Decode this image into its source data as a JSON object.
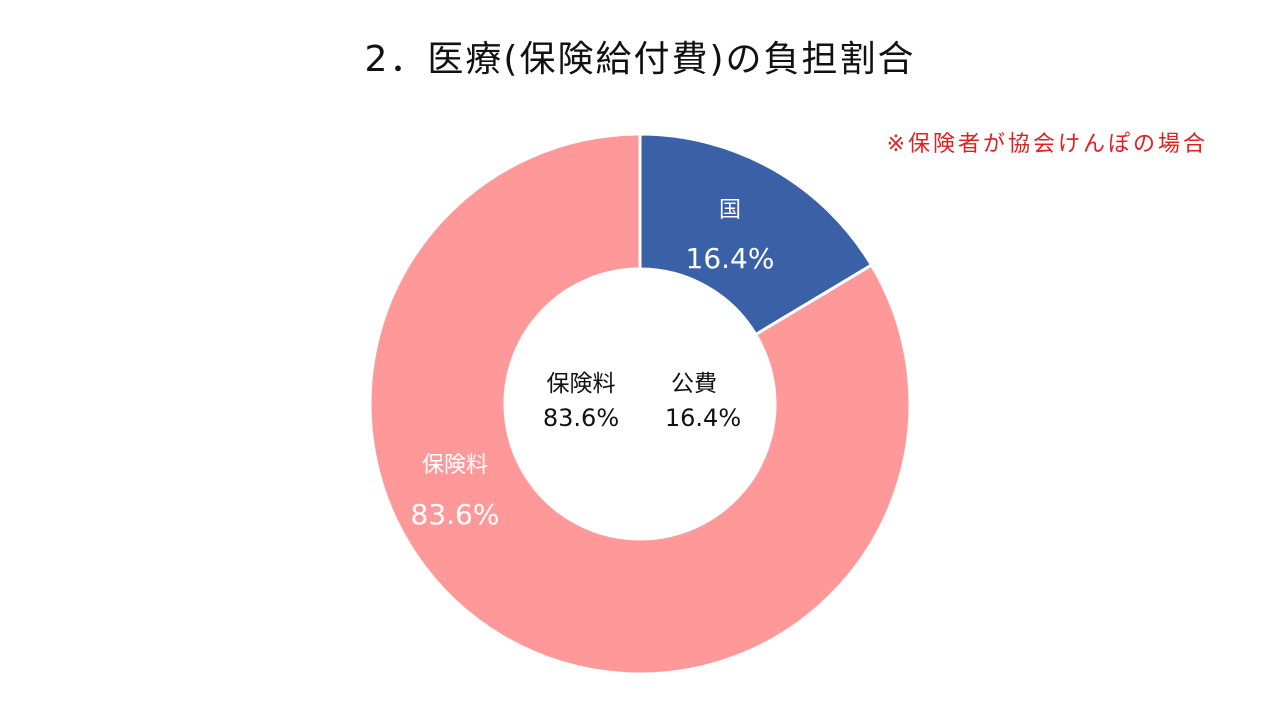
{
  "title": "2．医療(保険給付費)の負担割合",
  "note": {
    "text": "※保険者が協会けんぽの場合",
    "color": "#e02020"
  },
  "chart_data": {
    "type": "pie",
    "style": "donut",
    "categories": [
      "国",
      "保険料"
    ],
    "values": [
      16.4,
      83.6
    ],
    "value_labels": [
      "16.4%",
      "83.6%"
    ],
    "colors": [
      "#3a60a8",
      "#ff9999"
    ],
    "center_labels": [
      {
        "name": "保険料",
        "value": "83.6%"
      },
      {
        "name": "公費",
        "value": "16.4%"
      }
    ]
  }
}
